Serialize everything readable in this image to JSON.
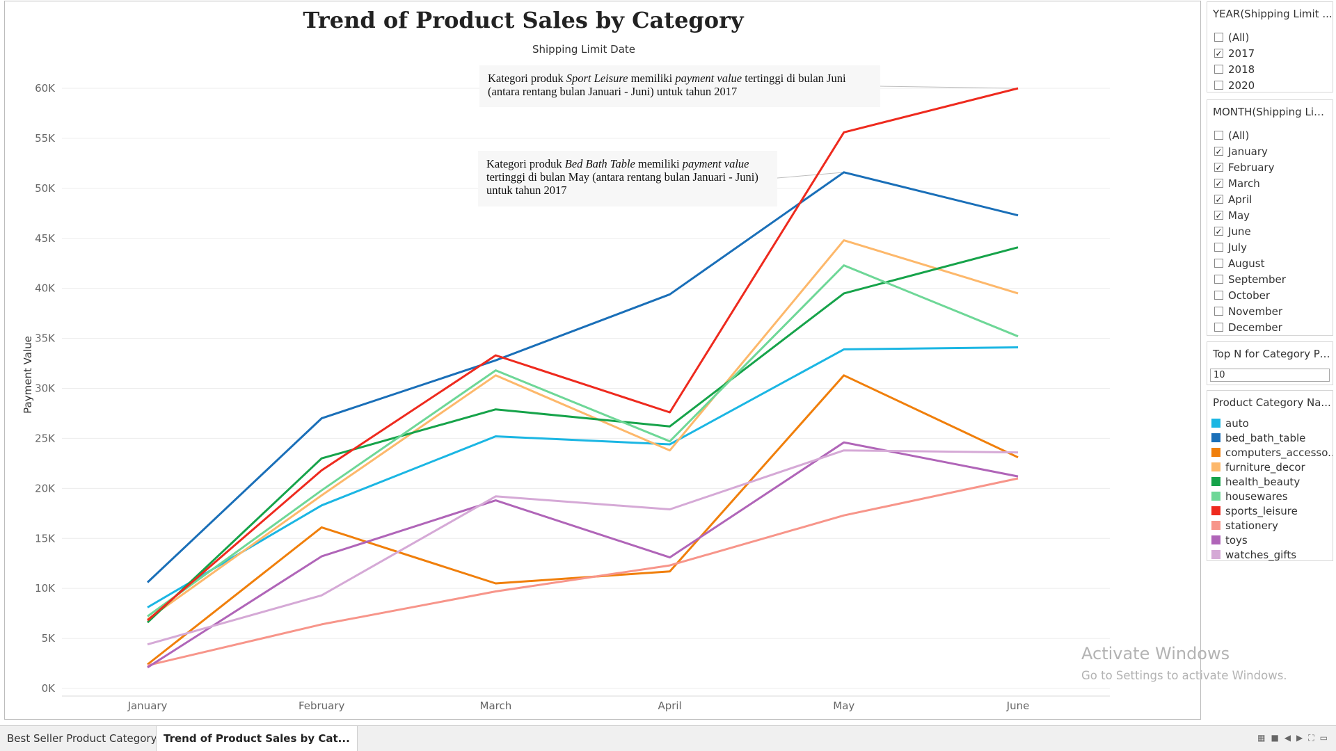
{
  "tabs": [
    {
      "label": "Best Seller Product Category",
      "active": false
    },
    {
      "label": "Trend of Product Sales by Cat...",
      "active": true
    }
  ],
  "annotations": [
    {
      "html": "Kategori produk <i>Sport Leisure</i> memiliki <i>payment value</i> tertinggi di bulan Juni (antara rentang bulan Januari - Juni) untuk tahun 2017"
    },
    {
      "html": "Kategori produk <i>Bed Bath Table</i> memiliki <i>payment value</i> tertinggi di bulan May (antara rentang bulan Januari - Juni) untuk tahun 2017"
    }
  ],
  "filters": {
    "year": {
      "title": "YEAR(Shipping Limit ...",
      "items": [
        {
          "label": "(All)",
          "checked": false
        },
        {
          "label": "2017",
          "checked": true
        },
        {
          "label": "2018",
          "checked": false
        },
        {
          "label": "2020",
          "checked": false
        }
      ]
    },
    "month": {
      "title": "MONTH(Shipping Lim...",
      "items": [
        {
          "label": "(All)",
          "checked": false
        },
        {
          "label": "January",
          "checked": true
        },
        {
          "label": "February",
          "checked": true
        },
        {
          "label": "March",
          "checked": true
        },
        {
          "label": "April",
          "checked": true
        },
        {
          "label": "May",
          "checked": true
        },
        {
          "label": "June",
          "checked": true
        },
        {
          "label": "July",
          "checked": false
        },
        {
          "label": "August",
          "checked": false
        },
        {
          "label": "September",
          "checked": false
        },
        {
          "label": "October",
          "checked": false
        },
        {
          "label": "November",
          "checked": false
        },
        {
          "label": "December",
          "checked": false
        }
      ]
    },
    "topn": {
      "title": "Top N for Category Pr...",
      "value": "10"
    }
  },
  "legend": {
    "title": "Product Category Na...",
    "items": [
      {
        "label": "auto",
        "color": "#1BB6E3"
      },
      {
        "label": "bed_bath_table",
        "color": "#1A6FB8"
      },
      {
        "label": "computers_accesso...",
        "color": "#F07F0B"
      },
      {
        "label": "furniture_decor",
        "color": "#FDB86B"
      },
      {
        "label": "health_beauty",
        "color": "#16A34A"
      },
      {
        "label": "housewares",
        "color": "#6ED797"
      },
      {
        "label": "sports_leisure",
        "color": "#EE2A1E"
      },
      {
        "label": "stationery",
        "color": "#F7958A"
      },
      {
        "label": "toys",
        "color": "#B065B8"
      },
      {
        "label": "watches_gifts",
        "color": "#D5A9D6"
      }
    ]
  },
  "watermark": {
    "line1": "Activate Windows",
    "line2": "Go to Settings to activate Windows."
  },
  "chart_data": {
    "type": "line",
    "title": "Trend of Product Sales by Category",
    "subtitle": "Shipping Limit Date",
    "xlabel": "",
    "ylabel": "Payment Value",
    "categories": [
      "January",
      "February",
      "March",
      "April",
      "May",
      "June"
    ],
    "ylim": [
      0,
      60000
    ],
    "yticks": [
      0,
      5000,
      10000,
      15000,
      20000,
      25000,
      30000,
      35000,
      40000,
      45000,
      50000,
      55000,
      60000
    ],
    "ytick_labels": [
      "0K",
      "5K",
      "10K",
      "15K",
      "20K",
      "25K",
      "30K",
      "35K",
      "40K",
      "45K",
      "50K",
      "55K",
      "60K"
    ],
    "grid": true,
    "legend_position": "right",
    "series": [
      {
        "name": "auto",
        "color": "#1BB6E3",
        "values": [
          8100,
          18300,
          25200,
          24400,
          33900,
          34100
        ]
      },
      {
        "name": "bed_bath_table",
        "color": "#1A6FB8",
        "values": [
          10600,
          27000,
          32800,
          39400,
          51600,
          47300
        ]
      },
      {
        "name": "computers_accesso...",
        "color": "#F07F0B",
        "values": [
          2400,
          16100,
          10500,
          11700,
          31300,
          23100
        ]
      },
      {
        "name": "furniture_decor",
        "color": "#FDB86B",
        "values": [
          6900,
          19300,
          31300,
          23800,
          44800,
          39500
        ]
      },
      {
        "name": "health_beauty",
        "color": "#16A34A",
        "values": [
          6600,
          23000,
          27900,
          26200,
          39500,
          44100
        ]
      },
      {
        "name": "housewares",
        "color": "#6ED797",
        "values": [
          7200,
          19800,
          31800,
          24700,
          42300,
          35200
        ]
      },
      {
        "name": "sports_leisure",
        "color": "#EE2A1E",
        "values": [
          6800,
          21800,
          33300,
          27600,
          55600,
          60000
        ]
      },
      {
        "name": "stationery",
        "color": "#F7958A",
        "values": [
          2300,
          6400,
          9700,
          12300,
          17300,
          21000
        ]
      },
      {
        "name": "toys",
        "color": "#B065B8",
        "values": [
          2100,
          13200,
          18800,
          13100,
          24600,
          21200
        ]
      },
      {
        "name": "watches_gifts",
        "color": "#D5A9D6",
        "values": [
          4400,
          9300,
          19200,
          17900,
          23800,
          23600
        ]
      }
    ]
  }
}
